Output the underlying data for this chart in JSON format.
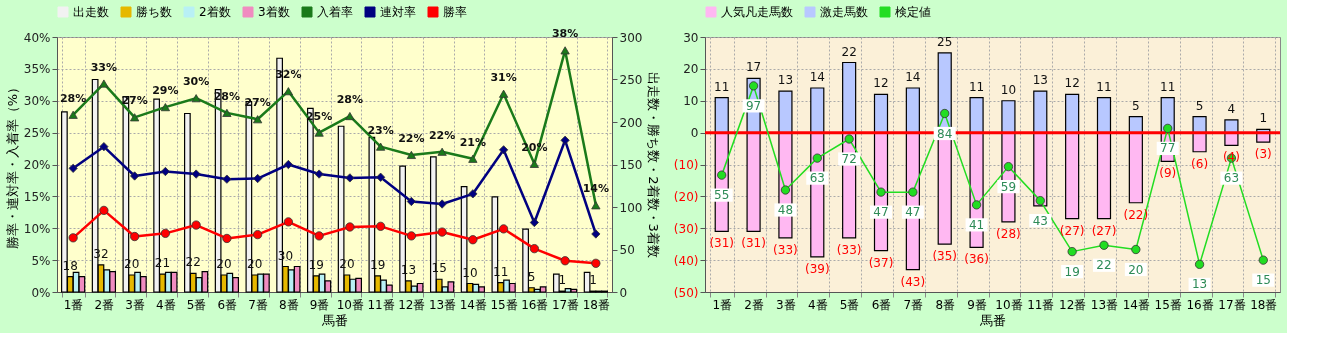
{
  "chart_data": [
    {
      "type": "bar",
      "categories": [
        "1番",
        "2番",
        "3番",
        "4番",
        "5番",
        "6番",
        "7番",
        "8番",
        "9番",
        "10番",
        "11番",
        "12番",
        "13番",
        "14番",
        "15番",
        "16番",
        "17番",
        "18番"
      ],
      "xlabel": "馬番",
      "ylabel": "勝率・連対率・入着率（%）",
      "y2label": "出走数・勝ち数・2着数・3着数",
      "ylim": [
        0,
        40
      ],
      "yticks": [
        {
          "value": 0,
          "label": "0%"
        },
        {
          "value": 5,
          "label": "5%"
        },
        {
          "value": 10,
          "label": "10%"
        },
        {
          "value": 15,
          "label": "15%"
        },
        {
          "value": 20,
          "label": "20%"
        },
        {
          "value": 25,
          "label": "25%"
        },
        {
          "value": 30,
          "label": "30%"
        },
        {
          "value": 35,
          "label": "35%"
        },
        {
          "value": 40,
          "label": "40%"
        }
      ],
      "y2lim": [
        0,
        300
      ],
      "y2ticks": [
        0,
        50,
        100,
        150,
        200,
        250,
        300
      ],
      "grid": true,
      "legend": "top",
      "series": [
        {
          "name": "出走数",
          "type": "bar",
          "axis": "y2",
          "color": "#f2f2f2",
          "values": [
            212,
            250,
            230,
            227,
            210,
            238,
            224,
            275,
            216,
            195,
            182,
            148,
            159,
            124,
            112,
            74,
            21,
            23
          ]
        },
        {
          "name": "勝ち数",
          "type": "bar",
          "axis": "y2",
          "color": "#e6b800",
          "values": [
            18,
            32,
            20,
            21,
            22,
            20,
            20,
            30,
            19,
            20,
            19,
            13,
            15,
            10,
            11,
            5,
            1,
            1
          ],
          "value_labels": [
            "18",
            "32",
            "20",
            "21",
            "22",
            "20",
            "20",
            "30",
            "19",
            "20",
            "19",
            "13",
            "15",
            "10",
            "11",
            "5",
            "1",
            "1"
          ]
        },
        {
          "name": "2着数",
          "type": "bar",
          "axis": "y2",
          "color": "#b8f0f5",
          "values": [
            23,
            26,
            23,
            23,
            17,
            22,
            21,
            26,
            21,
            15,
            14,
            7,
            6,
            9,
            14,
            3,
            4,
            1
          ]
        },
        {
          "name": "3着数",
          "type": "bar",
          "axis": "y2",
          "color": "#f08cc0",
          "values": [
            18,
            24,
            18,
            23,
            24,
            17,
            21,
            30,
            13,
            16,
            8,
            10,
            12,
            6,
            10,
            6,
            3,
            1
          ]
        },
        {
          "name": "入着率",
          "type": "line",
          "axis": "y",
          "color": "#1a7a1a",
          "marker": "triangle",
          "values": [
            27.8,
            32.7,
            27.4,
            29.0,
            30.4,
            28.1,
            27.1,
            31.5,
            25.0,
            27.6,
            22.8,
            21.5,
            22.0,
            20.9,
            31.1,
            20.1,
            37.9,
            13.6
          ],
          "value_labels": [
            "28%",
            "33%",
            "27%",
            "29%",
            "30%",
            "28%",
            "27%",
            "32%",
            "25%",
            "28%",
            "23%",
            "22%",
            "22%",
            "21%",
            "31%",
            "20%",
            "38%",
            "14%"
          ]
        },
        {
          "name": "連対率",
          "type": "line",
          "axis": "y",
          "color": "#000080",
          "marker": "diamond",
          "values": [
            19.4,
            22.8,
            18.2,
            18.9,
            18.5,
            17.7,
            17.8,
            20.0,
            18.5,
            17.9,
            18.0,
            14.2,
            13.8,
            15.4,
            22.3,
            10.9,
            23.8,
            9.1
          ]
        },
        {
          "name": "勝率",
          "type": "line",
          "axis": "y",
          "color": "#ff0000",
          "marker": "circle",
          "values": [
            8.5,
            12.8,
            8.7,
            9.2,
            10.5,
            8.4,
            9.0,
            11.0,
            8.8,
            10.2,
            10.3,
            8.8,
            9.4,
            8.2,
            9.9,
            6.8,
            4.9,
            4.5
          ]
        }
      ]
    },
    {
      "type": "bar",
      "categories": [
        "1番",
        "2番",
        "3番",
        "4番",
        "5番",
        "6番",
        "7番",
        "8番",
        "9番",
        "10番",
        "11番",
        "12番",
        "13番",
        "14番",
        "15番",
        "16番",
        "17番",
        "18番"
      ],
      "xlabel": "馬番",
      "stacked": true,
      "ylim": [
        -50,
        30
      ],
      "yticks": [
        {
          "value": -50,
          "label": "(50)"
        },
        {
          "value": -40,
          "label": "(40)"
        },
        {
          "value": -30,
          "label": "(30)"
        },
        {
          "value": -20,
          "label": "(20)"
        },
        {
          "value": -10,
          "label": "(10)"
        },
        0,
        10,
        20,
        30
      ],
      "y2lim": [
        0,
        120
      ],
      "grid": true,
      "legend": "top",
      "ref_lines": [
        {
          "axis": "y",
          "value": 0,
          "color": "#ff0000"
        }
      ],
      "series": [
        {
          "name": "人気凡走馬数",
          "type": "bar",
          "axis": "y",
          "color": "#ffb8f2",
          "values": [
            -31,
            -31,
            -33,
            -39,
            -33,
            -37,
            -43,
            -35,
            -36,
            -28,
            -23,
            -27,
            -27,
            -22,
            -9,
            -6,
            -4,
            -3
          ],
          "value_labels": [
            "(31)",
            "(31)",
            "(33)",
            "(39)",
            "(33)",
            "(37)",
            "(43)",
            "(35)",
            "(36)",
            "(28)",
            null,
            "(27)",
            "(27)",
            "(22)",
            "(9)",
            "(6)",
            "(4)",
            "(3)"
          ]
        },
        {
          "name": "激走馬数",
          "type": "bar",
          "axis": "y",
          "color": "#b8c8ff",
          "values": [
            11,
            17,
            13,
            14,
            22,
            12,
            14,
            25,
            11,
            10,
            13,
            12,
            11,
            5,
            11,
            5,
            4,
            1
          ],
          "value_labels": [
            "11",
            "17",
            "13",
            "14",
            "22",
            "12",
            "14",
            "25",
            "11",
            "10",
            "13",
            "12",
            "11",
            "5",
            "11",
            "5",
            "4",
            "1"
          ]
        },
        {
          "name": "検定値",
          "type": "line",
          "axis": "y2",
          "color": "#22dd22",
          "marker": "circle",
          "values": [
            55,
            97,
            48,
            63,
            72,
            47,
            47,
            84,
            41,
            59,
            43,
            19,
            22,
            20,
            77,
            13,
            63,
            15
          ],
          "value_labels": [
            "55",
            "97",
            "48",
            "63",
            "72",
            "47",
            "47",
            "84",
            "41",
            "59",
            "43",
            "19",
            "22",
            "20",
            "77",
            "13",
            "63",
            "15"
          ]
        }
      ]
    }
  ]
}
